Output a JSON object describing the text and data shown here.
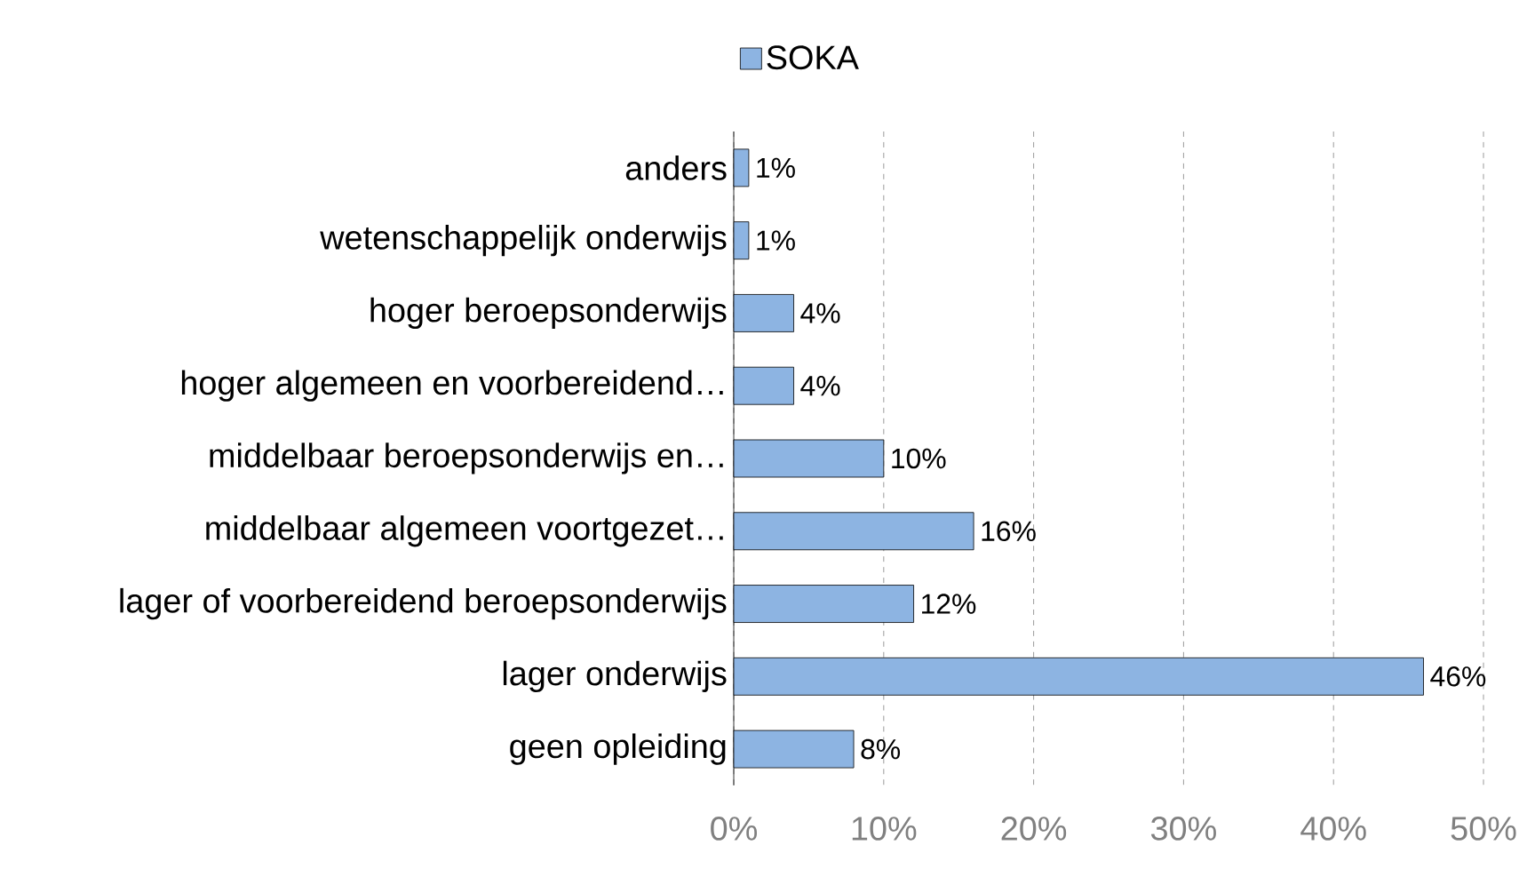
{
  "chart_data": {
    "type": "bar",
    "orientation": "horizontal",
    "categories": [
      "anders",
      "wetenschappelijk onderwijs",
      "hoger beroepsonderwijs",
      "hoger algemeen en voorbereidend…",
      "middelbaar beroepsonderwijs en…",
      "middelbaar algemeen voortgezet…",
      "lager of voorbereidend beroepsonderwijs",
      "lager onderwijs",
      "geen opleiding"
    ],
    "series": [
      {
        "name": "SOKA",
        "color": "#8db4e2",
        "values": [
          1,
          1,
          4,
          4,
          10,
          16,
          12,
          46,
          8
        ]
      }
    ],
    "value_labels": [
      "1%",
      "1%",
      "4%",
      "4%",
      "10%",
      "16%",
      "12%",
      "46%",
      "8%"
    ],
    "xlim": [
      0,
      50
    ],
    "xticks": [
      {
        "value": 0,
        "label": "0%"
      },
      {
        "value": 10,
        "label": "10%"
      },
      {
        "value": 20,
        "label": "20%"
      },
      {
        "value": 30,
        "label": "30%"
      },
      {
        "value": 40,
        "label": "40%"
      },
      {
        "value": 50,
        "label": "50%"
      }
    ],
    "grid": "x",
    "legend": "top"
  }
}
